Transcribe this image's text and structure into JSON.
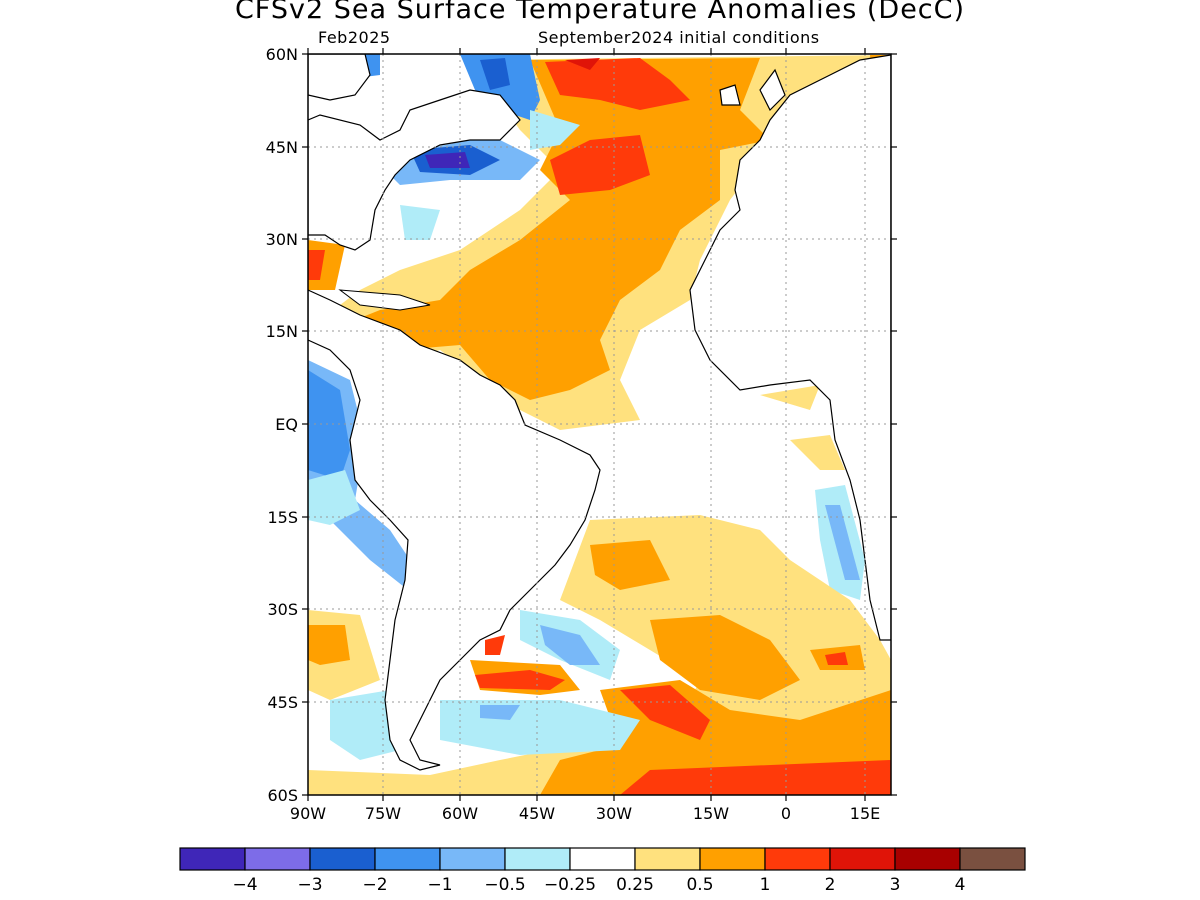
{
  "title": "CFSv2 Sea Surface Temperature Anomalies (DecC)",
  "valid_month": "Feb2025",
  "initial_conditions": "September2024 initial conditions",
  "map": {
    "lat_labels": [
      "60N",
      "45N",
      "30N",
      "15N",
      "EQ",
      "15S",
      "30S",
      "45S",
      "60S"
    ],
    "lon_labels": [
      "90W",
      "75W",
      "60W",
      "45W",
      "30W",
      "15W",
      "0",
      "15E"
    ],
    "gridlines": "dotted"
  },
  "colorbar": {
    "colors": [
      "#3f26b8",
      "#7d6ce8",
      "#1a5fd0",
      "#3f93f0",
      "#78b8f8",
      "#b0ecf8",
      "#ffffff",
      "#ffe17e",
      "#ffa000",
      "#ff3a0a",
      "#e01408",
      "#a80000",
      "#7a5040"
    ],
    "labels": [
      "−4",
      "−3",
      "−2",
      "−1",
      "−0.5",
      "−0.25",
      "0.25",
      "0.5",
      "1",
      "2",
      "3",
      "4"
    ]
  }
}
